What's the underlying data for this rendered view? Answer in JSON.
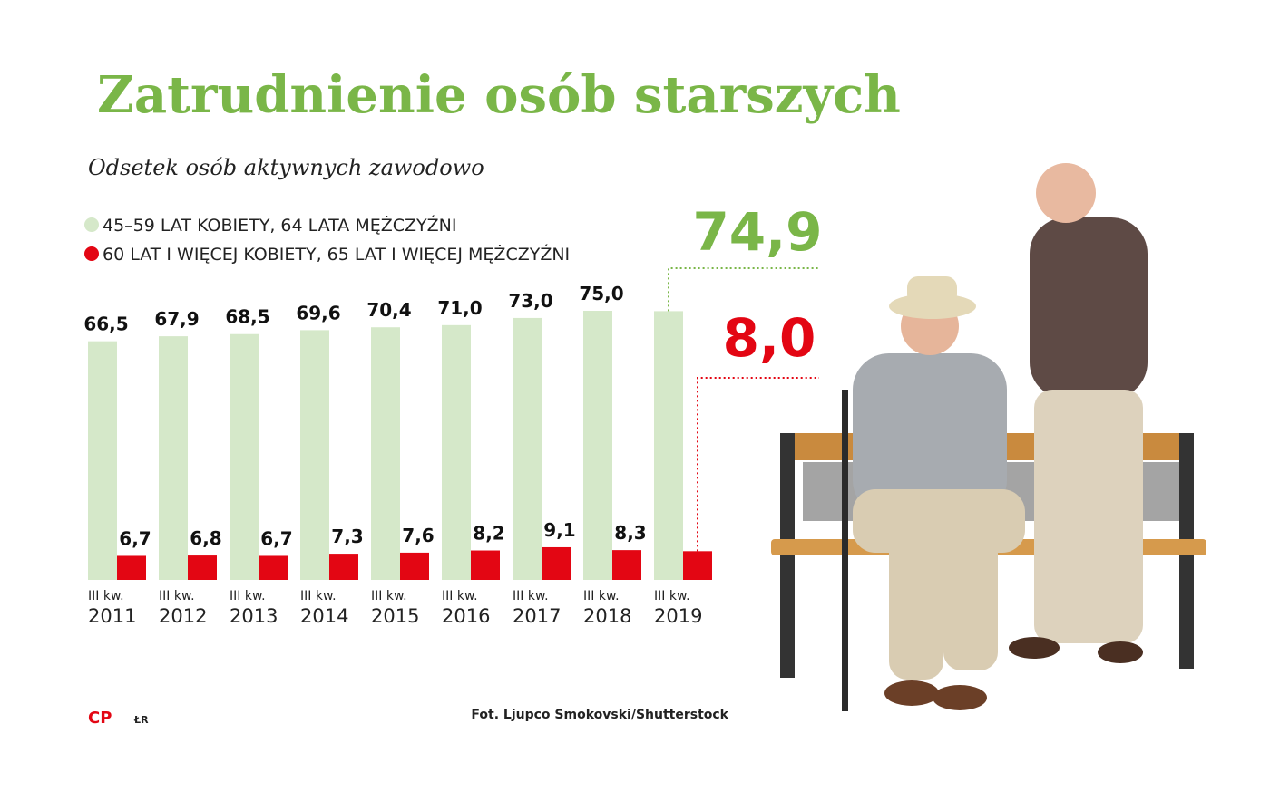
{
  "chart_data": {
    "type": "bar",
    "title": "Zatrudnienie osób starszych",
    "subtitle": "Odsetek osób aktywnych zawodowo",
    "categories": [
      "III kw. 2011",
      "III kw. 2012",
      "III kw. 2013",
      "III kw. 2014",
      "III kw. 2015",
      "III kw. 2016",
      "III kw. 2017",
      "III kw. 2018",
      "III kw. 2019"
    ],
    "series": [
      {
        "name": "45–59 LAT KOBIETY, 64 LATA MĘŻCZYŹNI",
        "color": "#d5e8c9",
        "label_color": "#7ab648",
        "values": [
          66.5,
          67.9,
          68.5,
          69.6,
          70.4,
          71.0,
          73.0,
          75.0,
          74.9
        ],
        "value_labels": [
          "66,5",
          "67,9",
          "68,5",
          "69,6",
          "70,4",
          "71,0",
          "73,0",
          "75,0",
          "74,9"
        ]
      },
      {
        "name": "60 LAT I WIĘCEJ KOBIETY, 65 LAT I WIĘCEJ MĘŻCZYŹNI",
        "color": "#e30613",
        "label_color": "#e30613",
        "values": [
          6.7,
          6.8,
          6.7,
          7.3,
          7.6,
          8.2,
          9.1,
          8.3,
          8.0
        ],
        "value_labels": [
          "6,7",
          "6,8",
          "6,7",
          "7,3",
          "7,6",
          "8,2",
          "9,1",
          "8,3",
          "8,0"
        ]
      }
    ],
    "logo": "CP",
    "author": "ŁR",
    "source": "Fot. Ljupco Smokovski/Shutterstock"
  }
}
